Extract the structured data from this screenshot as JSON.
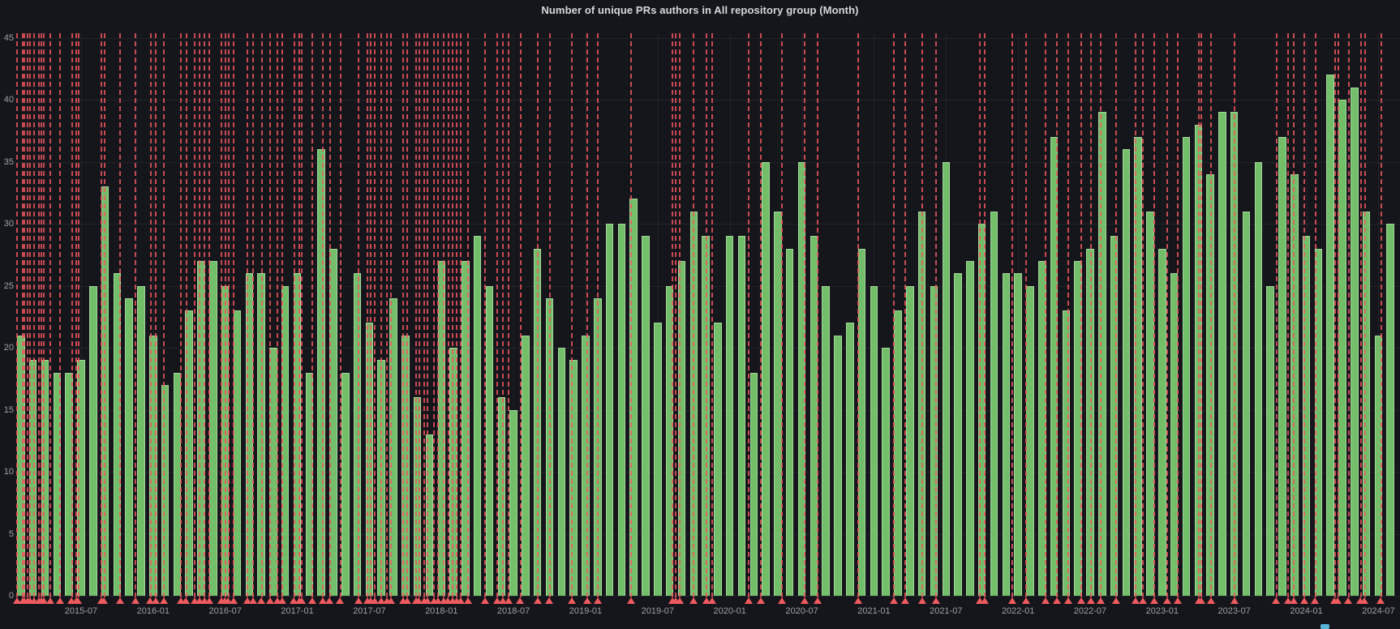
{
  "panel": {
    "title": "Number of unique PRs authors in All repository group (Month)",
    "background_color": "#15161b",
    "title_color": "#d8d9da",
    "axis_text_color": "#9da0a6"
  },
  "chart_data": {
    "type": "bar",
    "title": "Number of unique PRs authors in All repository group (Month)",
    "xlabel": "",
    "ylabel": "",
    "ylim": [
      0,
      45
    ],
    "y_ticks": [
      0,
      5,
      10,
      15,
      20,
      25,
      30,
      35,
      40,
      45
    ],
    "grid": true,
    "legend_position": "none",
    "bar_color": "#73BF69",
    "bar_edge_color": "#a5d69c",
    "annotation_color": "#F2495C",
    "x_tick_labels": [
      "2015-07",
      "2016-01",
      "2016-07",
      "2017-01",
      "2017-07",
      "2018-01",
      "2018-07",
      "2019-01",
      "2019-07",
      "2020-01",
      "2020-07",
      "2021-01",
      "2021-07",
      "2022-01",
      "2022-07",
      "2023-01",
      "2023-07",
      "2024-01",
      "2024-07"
    ],
    "categories": [
      "2015-02",
      "2015-03",
      "2015-04",
      "2015-05",
      "2015-06",
      "2015-07",
      "2015-08",
      "2015-09",
      "2015-10",
      "2015-11",
      "2015-12",
      "2016-01",
      "2016-02",
      "2016-03",
      "2016-04",
      "2016-05",
      "2016-06",
      "2016-07",
      "2016-08",
      "2016-09",
      "2016-10",
      "2016-11",
      "2016-12",
      "2017-01",
      "2017-02",
      "2017-03",
      "2017-04",
      "2017-05",
      "2017-06",
      "2017-07",
      "2017-08",
      "2017-09",
      "2017-10",
      "2017-11",
      "2017-12",
      "2018-01",
      "2018-02",
      "2018-03",
      "2018-04",
      "2018-05",
      "2018-06",
      "2018-07",
      "2018-08",
      "2018-09",
      "2018-10",
      "2018-11",
      "2018-12",
      "2019-01",
      "2019-02",
      "2019-03",
      "2019-04",
      "2019-05",
      "2019-06",
      "2019-07",
      "2019-08",
      "2019-09",
      "2019-10",
      "2019-11",
      "2019-12",
      "2020-01",
      "2020-02",
      "2020-03",
      "2020-04",
      "2020-05",
      "2020-06",
      "2020-07",
      "2020-08",
      "2020-09",
      "2020-10",
      "2020-11",
      "2020-12",
      "2021-01",
      "2021-02",
      "2021-03",
      "2021-04",
      "2021-05",
      "2021-06",
      "2021-07",
      "2021-08",
      "2021-09",
      "2021-10",
      "2021-11",
      "2021-12",
      "2022-01",
      "2022-02",
      "2022-03",
      "2022-04",
      "2022-05",
      "2022-06",
      "2022-07",
      "2022-08",
      "2022-09",
      "2022-10",
      "2022-11",
      "2022-12",
      "2023-01",
      "2023-02",
      "2023-03",
      "2023-04",
      "2023-05",
      "2023-06",
      "2023-07",
      "2023-08",
      "2023-09",
      "2023-10",
      "2023-11",
      "2023-12",
      "2024-01",
      "2024-02",
      "2024-03",
      "2024-04",
      "2024-05",
      "2024-06",
      "2024-07",
      "2024-08"
    ],
    "values": [
      21,
      19,
      19,
      18,
      18,
      19,
      25,
      33,
      26,
      24,
      25,
      21,
      17,
      18,
      23,
      27,
      27,
      25,
      23,
      26,
      26,
      20,
      25,
      26,
      18,
      36,
      28,
      18,
      26,
      22,
      19,
      24,
      21,
      16,
      13,
      27,
      20,
      27,
      29,
      25,
      16,
      15,
      21,
      28,
      24,
      20,
      19,
      21,
      24,
      30,
      30,
      32,
      29,
      22,
      25,
      27,
      31,
      29,
      22,
      29,
      29,
      18,
      35,
      31,
      28,
      35,
      29,
      25,
      21,
      22,
      28,
      25,
      20,
      23,
      25,
      31,
      25,
      35,
      26,
      27,
      30,
      31,
      26,
      26,
      25,
      27,
      37,
      23,
      27,
      28,
      39,
      29,
      36,
      37,
      31,
      28,
      26,
      37,
      38,
      34,
      39,
      39,
      31,
      35,
      25,
      37,
      34,
      29,
      28,
      42,
      40,
      41,
      31,
      21,
      30
    ],
    "annotations_month_x": [
      -0.33,
      0.15,
      0.28,
      0.55,
      0.75,
      1.09,
      1.5,
      1.7,
      1.9,
      2.44,
      3.25,
      4.26,
      4.6,
      4.8,
      6.7,
      6.96,
      8.25,
      9.53,
      10.81,
      11.22,
      11.9,
      13.31,
      13.78,
      14.46,
      14.87,
      15.27,
      15.68,
      16.69,
      17.02,
      17.29,
      17.7,
      18.85,
      19.32,
      20.06,
      20.74,
      21.35,
      21.75,
      22.76,
      23.17,
      23.37,
      24.25,
      25.13,
      25.73,
      26.61,
      28.1,
      28.84,
      29.11,
      29.45,
      29.99,
      30.46,
      30.8,
      31.81,
      32.15,
      32.89,
      33.16,
      33.57,
      33.84,
      34.38,
      34.72,
      35.19,
      35.59,
      35.93,
      36.27,
      36.61,
      37.22,
      38.63,
      39.65,
      40.12,
      40.59,
      41.6,
      43.02,
      44.03,
      45.86,
      47.14,
      48.02,
      50.79,
      54.23,
      54.5,
      54.84,
      55.99,
      57.07,
      57.54,
      60.58,
      61.59,
      63.35,
      65.24,
      66.32,
      69.69,
      72.67,
      73.61,
      75.03,
      76.18,
      79.82,
      80.23,
      82.52,
      83.67,
      85.29,
      86.24,
      87.18,
      88.26,
      89.07,
      89.88,
      91.17,
      92.79,
      93.39,
      94.34,
      95.42,
      96.3,
      98.05,
      98.26,
      99.07,
      101.02,
      104.53,
      105.48,
      105.95,
      106.83,
      107.77,
      109.39,
      109.66,
      110.54,
      111.55,
      111.89,
      113.24
    ]
  },
  "legend_clip": {
    "color": "#57b6d8"
  }
}
